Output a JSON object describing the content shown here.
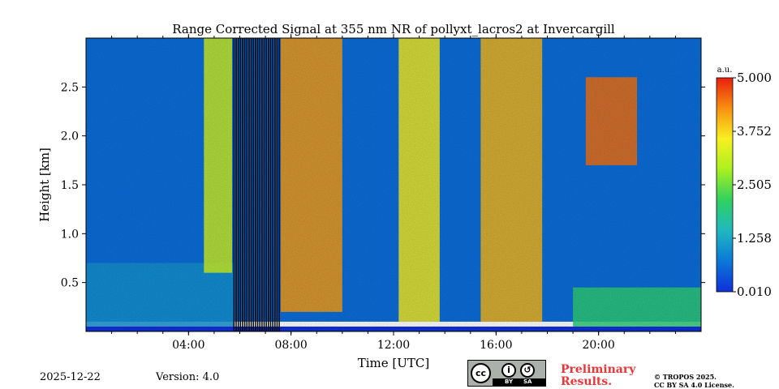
{
  "chart_data": {
    "type": "heatmap",
    "title": "Range Corrected Signal at 355 nm NR of pollyxt_lacros2 at Invercargill",
    "xlabel": "Time [UTC]",
    "ylabel": "Height [km]",
    "xlim": [
      0,
      24
    ],
    "ylim": [
      0,
      3.0
    ],
    "x_ticks": [
      {
        "value": 4,
        "label": "04:00"
      },
      {
        "value": 8,
        "label": "08:00"
      },
      {
        "value": 12,
        "label": "12:00"
      },
      {
        "value": 16,
        "label": "16:00"
      },
      {
        "value": 20,
        "label": "20:00"
      }
    ],
    "y_ticks": [
      {
        "value": 0.5,
        "label": "0.5"
      },
      {
        "value": 1.0,
        "label": "1.0"
      },
      {
        "value": 1.5,
        "label": "1.5"
      },
      {
        "value": 2.0,
        "label": "2.0"
      },
      {
        "value": 2.5,
        "label": "2.5"
      }
    ],
    "colorbar": {
      "unit": "a.u.",
      "range": [
        0.01,
        5.0
      ],
      "ticks": [
        {
          "value": 0.01,
          "label": "0.010"
        },
        {
          "value": 1.258,
          "label": "1.258"
        },
        {
          "value": 2.505,
          "label": "2.505"
        },
        {
          "value": 3.752,
          "label": "3.752"
        },
        {
          "value": 5.0,
          "label": "5.000"
        }
      ],
      "colors": [
        "#1030d8",
        "#0a78d8",
        "#20b8c0",
        "#30d060",
        "#a8f020",
        "#f8f020",
        "#f89010",
        "#e82010"
      ]
    },
    "features": [
      {
        "name": "background",
        "t0": 0,
        "t1": 24,
        "h0": 0.1,
        "h1": 3.0,
        "value": 0.6
      },
      {
        "name": "boundary-layer",
        "t0": 0,
        "t1": 5.8,
        "h0": 0.05,
        "h1": 0.7,
        "value": 1.0
      },
      {
        "name": "cloud-early",
        "t0": 4.6,
        "t1": 5.7,
        "h0": 0.6,
        "h1": 3.0,
        "value": 3.2
      },
      {
        "name": "cloud-morning",
        "t0": 7.6,
        "t1": 10.0,
        "h0": 0.2,
        "h1": 3.0,
        "value": 4.2
      },
      {
        "name": "cloud-midday",
        "t0": 12.2,
        "t1": 13.8,
        "h0": 0.1,
        "h1": 3.0,
        "value": 3.6
      },
      {
        "name": "cloud-afternoon",
        "t0": 15.4,
        "t1": 17.8,
        "h0": 0.1,
        "h1": 3.0,
        "value": 4.0
      },
      {
        "name": "cloud-evening",
        "t0": 19.5,
        "t1": 21.5,
        "h0": 1.7,
        "h1": 2.6,
        "value": 4.5
      },
      {
        "name": "aerosol-evening",
        "t0": 19.0,
        "t1": 24.0,
        "h0": 0.05,
        "h1": 0.45,
        "value": 2.0
      }
    ],
    "no_data_periods": [
      [
        5.75,
        7.6
      ]
    ]
  },
  "footer": {
    "date": "2025-12-22",
    "version": "Version: 4.0",
    "license_badge": {
      "cc": "cc",
      "by": "BY",
      "sa": "SA"
    },
    "preliminary_line1": "Preliminary",
    "preliminary_line2": "Results.",
    "copyright_line1": "© TROPOS 2025.",
    "copyright_line2": "CC BY SA 4.0 License."
  }
}
